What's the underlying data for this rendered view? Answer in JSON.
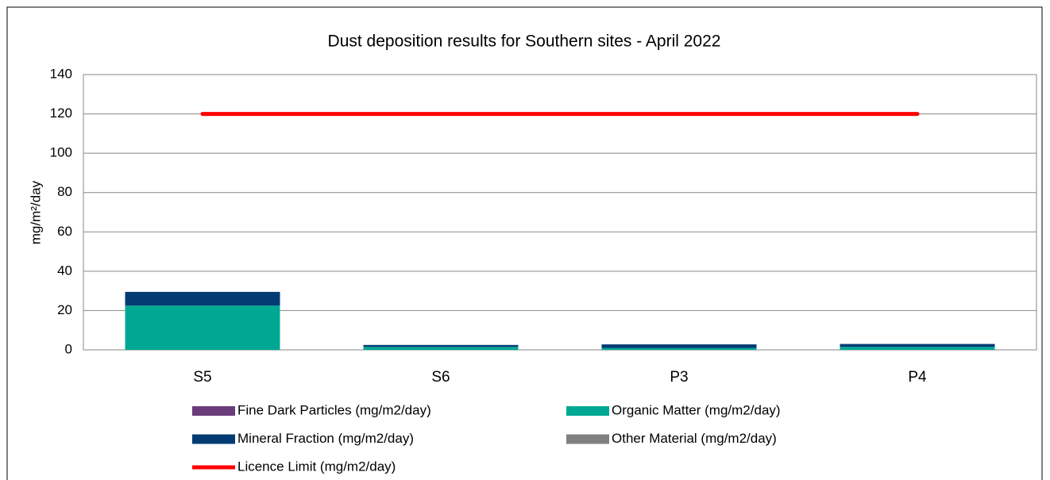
{
  "chart_data": {
    "type": "bar",
    "stacked": true,
    "title": "Dust deposition results for Southern sites -  April 2022",
    "y_label": "mg/m²/day",
    "categories": [
      "S5",
      "S6",
      "P3",
      "P4"
    ],
    "series": [
      {
        "name": "Fine Dark Particles (mg/m2/day)",
        "color": "#6a3d7a",
        "values": [
          0,
          0,
          0,
          0
        ]
      },
      {
        "name": "Organic Matter (mg/m2/day)",
        "color": "#00a893",
        "values": [
          22.5,
          1.5,
          1,
          1.5
        ]
      },
      {
        "name": "Mineral Fraction (mg/m2/day)",
        "color": "#033c74",
        "values": [
          7,
          1,
          1.8,
          1.5
        ]
      },
      {
        "name": "Other Material (mg/m2/day)",
        "color": "#808080",
        "values": [
          0,
          0,
          0,
          0
        ]
      },
      {
        "name": "Licence Limit  (mg/m2/day)",
        "type": "line",
        "color": "#ff0000",
        "values": [
          120,
          120,
          120,
          120
        ]
      }
    ],
    "ylim": [
      0,
      140
    ],
    "yticks": [
      0,
      20,
      40,
      60,
      80,
      100,
      120,
      140
    ],
    "grid": true
  }
}
